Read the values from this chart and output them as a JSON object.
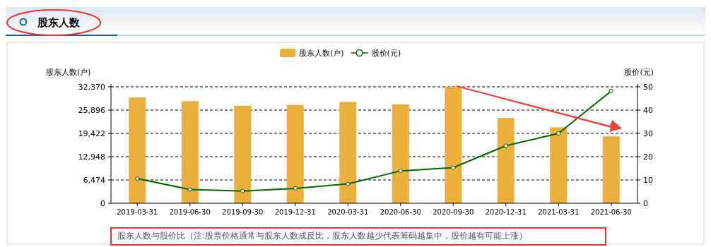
{
  "chart_data": {
    "type": "bar",
    "title": "股东人数",
    "ylabel": "股东人数(户)",
    "y2label": "股价(元)",
    "categories": [
      "2019-03-31",
      "2019-06-30",
      "2019-09-30",
      "2019-12-31",
      "2020-03-31",
      "2020-06-30",
      "2020-09-30",
      "2020-12-31",
      "2021-03-31",
      "2021-06-30"
    ],
    "series": [
      {
        "name": "股东人数(户)",
        "color": "#ebaf3c",
        "values": [
          29400,
          28400,
          27100,
          27300,
          28200,
          27500,
          32370,
          23700,
          21100,
          18600
        ]
      },
      {
        "name": "股价(元)",
        "type": "line",
        "axis": "y2",
        "color": "#006600",
        "marker": "circle",
        "line_style": "solid",
        "values": [
          10.6,
          5.9,
          5.2,
          6.4,
          8.3,
          13.9,
          15.3,
          24.7,
          30.0,
          48.2
        ]
      }
    ],
    "ylim": [
      0,
      32370
    ],
    "yticks": [
      0,
      {
        "value": 6474,
        "label": "6,474"
      },
      {
        "value": 12948,
        "label": "12,948"
      },
      {
        "value": 19422,
        "label": "19,422"
      },
      {
        "value": 25896,
        "label": "25,896"
      },
      {
        "value": 32370,
        "label": "32,370"
      }
    ],
    "y2lim": [
      0,
      50
    ],
    "y2ticks": [
      0,
      10,
      20,
      30,
      40,
      50
    ],
    "grid": "y",
    "legend": "top",
    "annotations": [
      "股东人数与股价比（注:股票价格通常与股东人数成反比，股东人数越少代表筹码越集中，股价越有可能上涨）"
    ]
  }
}
